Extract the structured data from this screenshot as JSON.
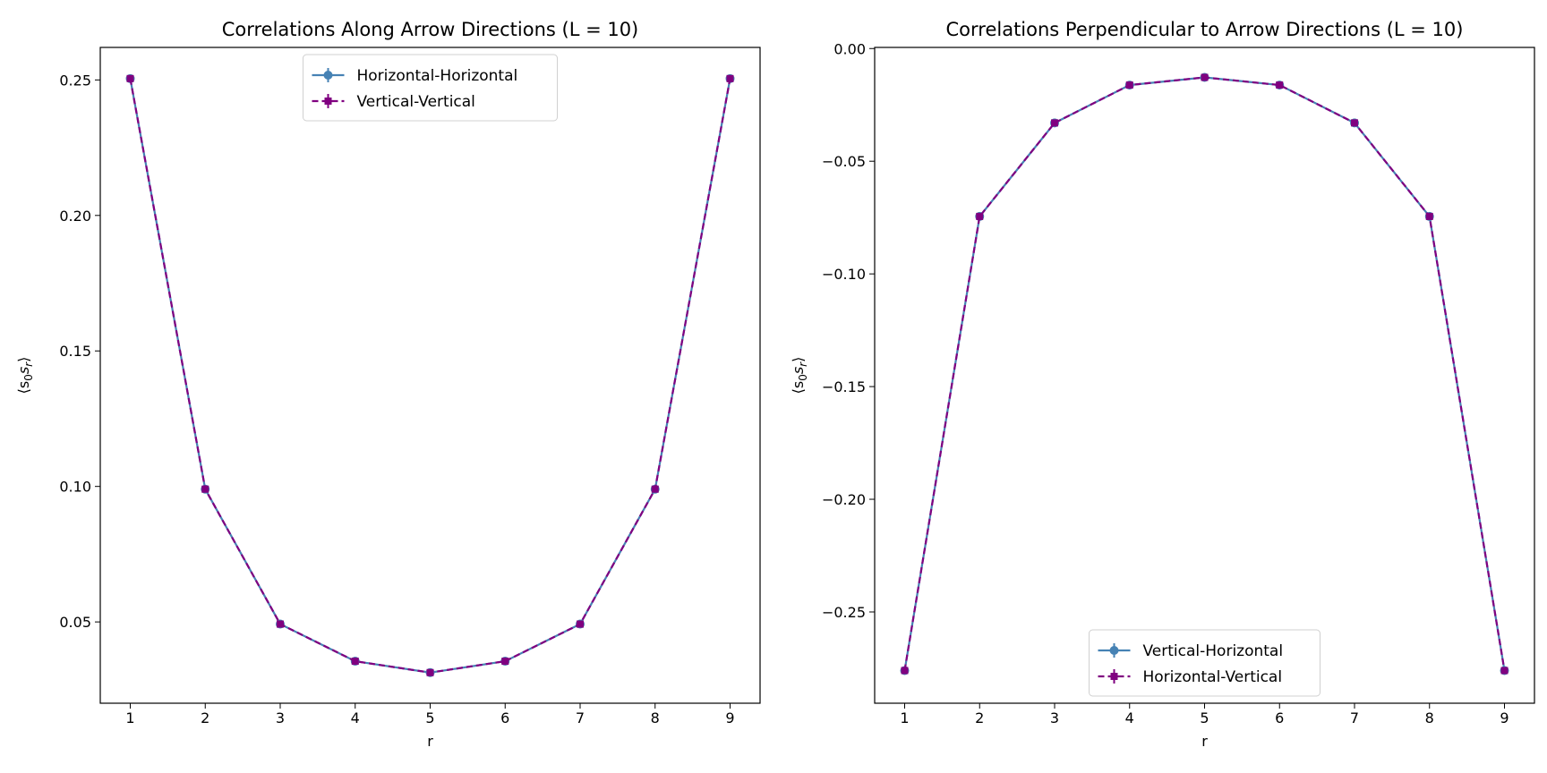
{
  "chart_data": [
    {
      "type": "line",
      "title": "Correlations Along Arrow Directions (L = 10)",
      "xlabel": "r",
      "ylabel": "⟨s₀s_r⟩",
      "ylabel_main": "⟨s",
      "ylabel_sub1": "0",
      "ylabel_mid": "s",
      "ylabel_sub2": "r",
      "ylabel_end": "⟩",
      "x": [
        1,
        2,
        3,
        4,
        5,
        6,
        7,
        8,
        9
      ],
      "xlim": [
        0.6,
        9.4
      ],
      "ylim": [
        0.02,
        0.262
      ],
      "yticks": [
        0.05,
        0.1,
        0.15,
        0.2,
        0.25
      ],
      "ytick_labels": [
        "0.05",
        "0.10",
        "0.15",
        "0.20",
        "0.25"
      ],
      "xtick_labels": [
        "1",
        "2",
        "3",
        "4",
        "5",
        "6",
        "7",
        "8",
        "9"
      ],
      "legend_position": "upper center",
      "series": [
        {
          "name": "Horizontal-Horizontal",
          "values": [
            0.2505,
            0.099,
            0.0492,
            0.0355,
            0.0313,
            0.0355,
            0.0492,
            0.099,
            0.2505
          ],
          "color": "#4682b4",
          "style": "solid",
          "marker": "circle"
        },
        {
          "name": "Vertical-Vertical",
          "values": [
            0.2505,
            0.099,
            0.0492,
            0.0355,
            0.0313,
            0.0355,
            0.0492,
            0.099,
            0.2505
          ],
          "color": "#800080",
          "style": "dashed",
          "marker": "square"
        }
      ]
    },
    {
      "type": "line",
      "title": "Correlations Perpendicular to Arrow Directions (L = 10)",
      "xlabel": "r",
      "ylabel": "⟨s₀s_r⟩",
      "ylabel_main": "⟨s",
      "ylabel_sub1": "0",
      "ylabel_mid": "s",
      "ylabel_sub2": "r",
      "ylabel_end": "⟩",
      "x": [
        1,
        2,
        3,
        4,
        5,
        6,
        7,
        8,
        9
      ],
      "xlim": [
        0.6,
        9.4
      ],
      "ylim": [
        -0.2905,
        0.0005
      ],
      "yticks": [
        0.0,
        -0.05,
        -0.1,
        -0.15,
        -0.2,
        -0.25
      ],
      "ytick_labels": [
        "0.00",
        "−0.05",
        "−0.10",
        "−0.15",
        "−0.20",
        "−0.25"
      ],
      "xtick_labels": [
        "1",
        "2",
        "3",
        "4",
        "5",
        "6",
        "7",
        "8",
        "9"
      ],
      "legend_position": "lower center",
      "series": [
        {
          "name": "Vertical-Horizontal",
          "values": [
            -0.276,
            -0.0745,
            -0.033,
            -0.0162,
            -0.0128,
            -0.0162,
            -0.033,
            -0.0745,
            -0.276
          ],
          "color": "#4682b4",
          "style": "solid",
          "marker": "circle"
        },
        {
          "name": "Horizontal-Vertical",
          "values": [
            -0.276,
            -0.0745,
            -0.033,
            -0.0162,
            -0.0128,
            -0.0162,
            -0.033,
            -0.0745,
            -0.276
          ],
          "color": "#800080",
          "style": "dashed",
          "marker": "square"
        }
      ]
    }
  ]
}
